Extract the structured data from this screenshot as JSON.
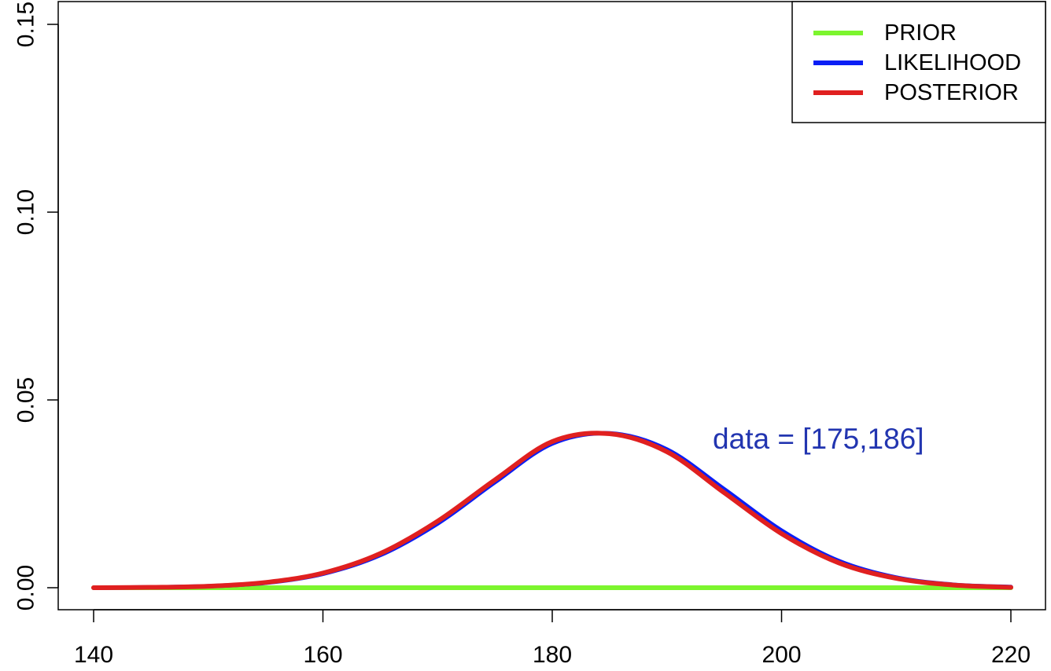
{
  "chart_data": {
    "type": "line",
    "xlim": [
      140,
      220
    ],
    "ylim": [
      0,
      0.15
    ],
    "x_ticks": [
      140,
      160,
      180,
      200,
      220
    ],
    "x_tick_labels": [
      "140",
      "160",
      "180",
      "200",
      "220"
    ],
    "y_ticks": [
      0,
      0.05,
      0.1,
      0.15
    ],
    "y_tick_labels": [
      "0.00",
      "0.05",
      "0.10",
      "0.15"
    ],
    "grid": false,
    "legend_position": "top-right",
    "series": [
      {
        "name": "PRIOR",
        "color": "#7CF52E",
        "x": [
          140,
          150,
          160,
          170,
          180,
          190,
          200,
          210,
          220
        ],
        "y": [
          0,
          0,
          0,
          0,
          0,
          0,
          0,
          0,
          0
        ]
      },
      {
        "name": "LIKELIHOOD",
        "color": "#0A1EF5",
        "x": [
          140,
          145,
          150,
          155,
          160,
          165,
          170,
          175,
          180,
          185,
          190,
          195,
          200,
          205,
          210,
          215,
          220
        ],
        "y": [
          0.0,
          0.0001,
          0.0004,
          0.0013,
          0.0037,
          0.0087,
          0.0171,
          0.0281,
          0.0384,
          0.0411,
          0.0368,
          0.0262,
          0.0152,
          0.0071,
          0.0027,
          0.0008,
          0.0002
        ]
      },
      {
        "name": "POSTERIOR",
        "color": "#E02020",
        "x": [
          140,
          145,
          150,
          155,
          160,
          165,
          170,
          175,
          180,
          185,
          190,
          195,
          200,
          205,
          210,
          215,
          220
        ],
        "y": [
          0.0,
          0.0001,
          0.0004,
          0.0014,
          0.0039,
          0.0091,
          0.0177,
          0.0287,
          0.0389,
          0.041,
          0.0362,
          0.0253,
          0.0144,
          0.0066,
          0.0025,
          0.0007,
          0.0001
        ]
      }
    ],
    "annotation": {
      "text": "data = [175,186]",
      "x": 194,
      "y": 0.0395,
      "color": "#2235B0"
    }
  }
}
